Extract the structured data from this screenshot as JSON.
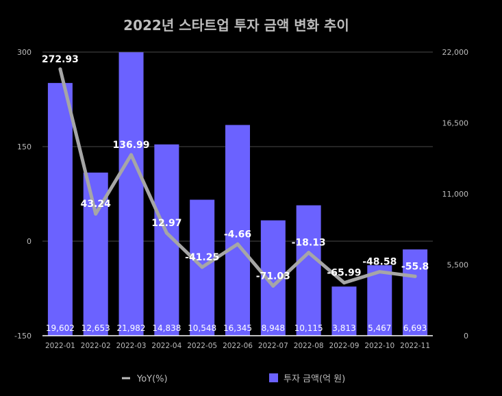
{
  "chart_data": {
    "type": "bar",
    "title": "2022년 스타트업 투자 금액 변화 추이",
    "categories": [
      "2022-01",
      "2022-02",
      "2022-03",
      "2022-04",
      "2022-05",
      "2022-06",
      "2022-07",
      "2022-08",
      "2022-09",
      "2022-10",
      "2022-11"
    ],
    "series": [
      {
        "name": "투자 금액(억 원)",
        "type": "bar",
        "axis": "right",
        "values": [
          19602,
          12653,
          21982,
          14838,
          10548,
          16345,
          8948,
          10115,
          3813,
          5467,
          6693
        ],
        "value_labels": [
          "19,602",
          "12,653",
          "21,982",
          "14,838",
          "10,548",
          "16,345",
          "8,948",
          "10,115",
          "3,813",
          "5,467",
          "6,693"
        ],
        "color": "#6b62ff"
      },
      {
        "name": "YoY(%)",
        "type": "line",
        "axis": "left",
        "values": [
          272.93,
          43.24,
          136.99,
          12.97,
          -41.25,
          -4.66,
          -71.03,
          -18.13,
          -65.99,
          -48.58,
          -55.8
        ],
        "value_labels": [
          "272.93",
          "43.24",
          "136.99",
          "12.97",
          "-41.25",
          "-4.66",
          "-71.03",
          "-18.13",
          "-65.99",
          "-48.58",
          "-55.8"
        ],
        "color": "#a6a6a6"
      }
    ],
    "y_left": {
      "ylim": [
        -150,
        300
      ],
      "ticks": [
        "300",
        "150",
        "0",
        "-150"
      ],
      "tick_values": [
        300,
        150,
        0,
        -150
      ]
    },
    "y_right": {
      "ylim": [
        0,
        22000
      ],
      "ticks": [
        "22,000",
        "16,500",
        "11,000",
        "5,500",
        "0"
      ],
      "tick_values": [
        22000,
        16500,
        11000,
        5500,
        0
      ]
    },
    "legend": {
      "position": "bottom",
      "items": [
        "YoY(%)",
        "투자 금액(억 원)"
      ]
    },
    "grid": true
  }
}
